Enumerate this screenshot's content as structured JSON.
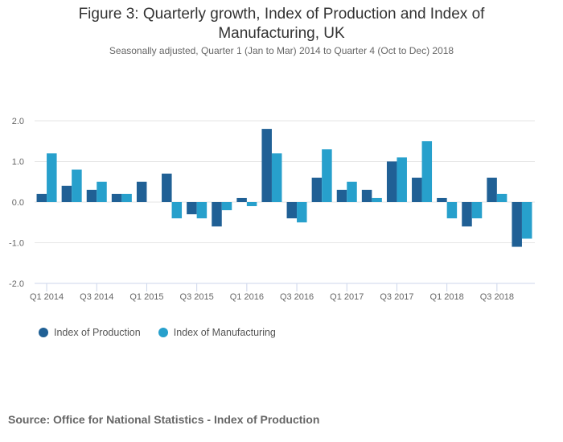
{
  "header": {
    "title_line1": "Figure 3: Quarterly growth, Index of Production and Index of",
    "title_line2": "Manufacturing, UK",
    "subtitle": "Seasonally adjusted, Quarter 1 (Jan to Mar) 2014 to Quarter 4 (Oct to Dec) 2018"
  },
  "footer": {
    "source": "Source: Office for National Statistics - Index of Production"
  },
  "colors": {
    "index_of_production": "#206095",
    "index_of_manufacturing": "#27a0cc",
    "gridline": "#e6e6e6",
    "axis": "#ccd6eb"
  },
  "chart_data": {
    "type": "bar",
    "title": "Figure 3: Quarterly growth, Index of Production and Index of Manufacturing, UK",
    "subtitle": "Seasonally adjusted, Quarter 1 (Jan to Mar) 2014 to Quarter 4 (Oct to Dec) 2018",
    "xlabel": "",
    "ylabel": "",
    "ylim": [
      -2.0,
      2.0
    ],
    "yticks": [
      "2.0",
      "1.0",
      "0.0",
      "-1.0",
      "-2.0"
    ],
    "ytick_values": [
      2.0,
      1.0,
      0.0,
      -1.0,
      -2.0
    ],
    "grid": true,
    "legend_position": "bottom-left",
    "categories": [
      "Q1 2014",
      "Q2 2014",
      "Q3 2014",
      "Q4 2014",
      "Q1 2015",
      "Q2 2015",
      "Q3 2015",
      "Q4 2015",
      "Q1 2016",
      "Q2 2016",
      "Q3 2016",
      "Q4 2016",
      "Q1 2017",
      "Q2 2017",
      "Q3 2017",
      "Q4 2017",
      "Q1 2018",
      "Q2 2018",
      "Q3 2018",
      "Q4 2018"
    ],
    "xtick_labels": [
      "Q1 2014",
      "Q3 2014",
      "Q1 2015",
      "Q3 2015",
      "Q1 2016",
      "Q3 2016",
      "Q1 2017",
      "Q3 2017",
      "Q1 2018",
      "Q3 2018"
    ],
    "series": [
      {
        "name": "Index of Production",
        "color": "#206095",
        "values": [
          0.2,
          0.4,
          0.3,
          0.2,
          0.5,
          0.7,
          -0.3,
          -0.6,
          0.1,
          1.8,
          -0.4,
          0.6,
          0.3,
          0.3,
          1.0,
          0.6,
          0.1,
          -0.6,
          0.6,
          -1.1
        ]
      },
      {
        "name": "Index of Manufacturing",
        "color": "#27a0cc",
        "values": [
          1.2,
          0.8,
          0.5,
          0.2,
          0.0,
          -0.4,
          -0.4,
          -0.2,
          -0.1,
          1.2,
          -0.5,
          1.3,
          0.5,
          0.1,
          1.1,
          1.5,
          -0.4,
          -0.4,
          0.2,
          -0.9
        ]
      }
    ]
  }
}
